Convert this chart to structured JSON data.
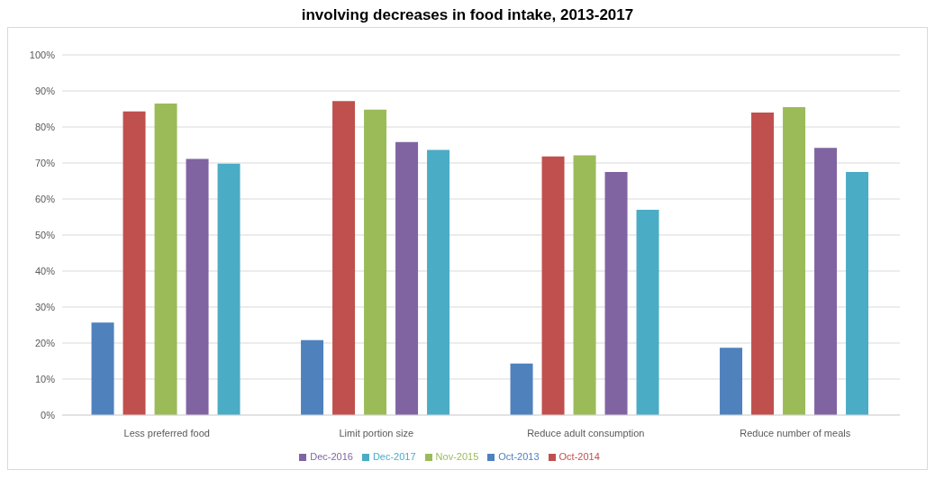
{
  "chart_data": {
    "type": "bar",
    "title": "involving decreases in food intake, 2013-2017",
    "categories": [
      "Less preferred food",
      "Limit portion size",
      "Reduce adult consumption",
      "Reduce number of meals"
    ],
    "series": [
      {
        "name": "Oct-2013",
        "color": "#4f81bd",
        "values": [
          25.7,
          20.8,
          14.3,
          18.7
        ]
      },
      {
        "name": "Oct-2014",
        "color": "#c0504d",
        "values": [
          84.3,
          87.2,
          71.8,
          84.0
        ]
      },
      {
        "name": "Nov-2015",
        "color": "#9bbb59",
        "values": [
          86.5,
          84.8,
          72.1,
          85.5
        ]
      },
      {
        "name": "Dec-2016",
        "color": "#8064a2",
        "values": [
          71.1,
          75.8,
          67.5,
          74.2
        ]
      },
      {
        "name": "Dec-2017",
        "color": "#4bacc6",
        "values": [
          69.8,
          73.6,
          57.0,
          67.5
        ]
      }
    ],
    "ylim": [
      0,
      100
    ],
    "yticks": [
      {
        "value": 0,
        "label": "0%"
      },
      {
        "value": 10,
        "label": "10%"
      },
      {
        "value": 20,
        "label": "20%"
      },
      {
        "value": 30,
        "label": "30%"
      },
      {
        "value": 40,
        "label": "40%"
      },
      {
        "value": 50,
        "label": "50%"
      },
      {
        "value": 60,
        "label": "60%"
      },
      {
        "value": 70,
        "label": "70%"
      },
      {
        "value": 80,
        "label": "80%"
      },
      {
        "value": 90,
        "label": "90%"
      },
      {
        "value": 100,
        "label": "100%"
      }
    ],
    "grid": "y",
    "legend": "bottom"
  }
}
